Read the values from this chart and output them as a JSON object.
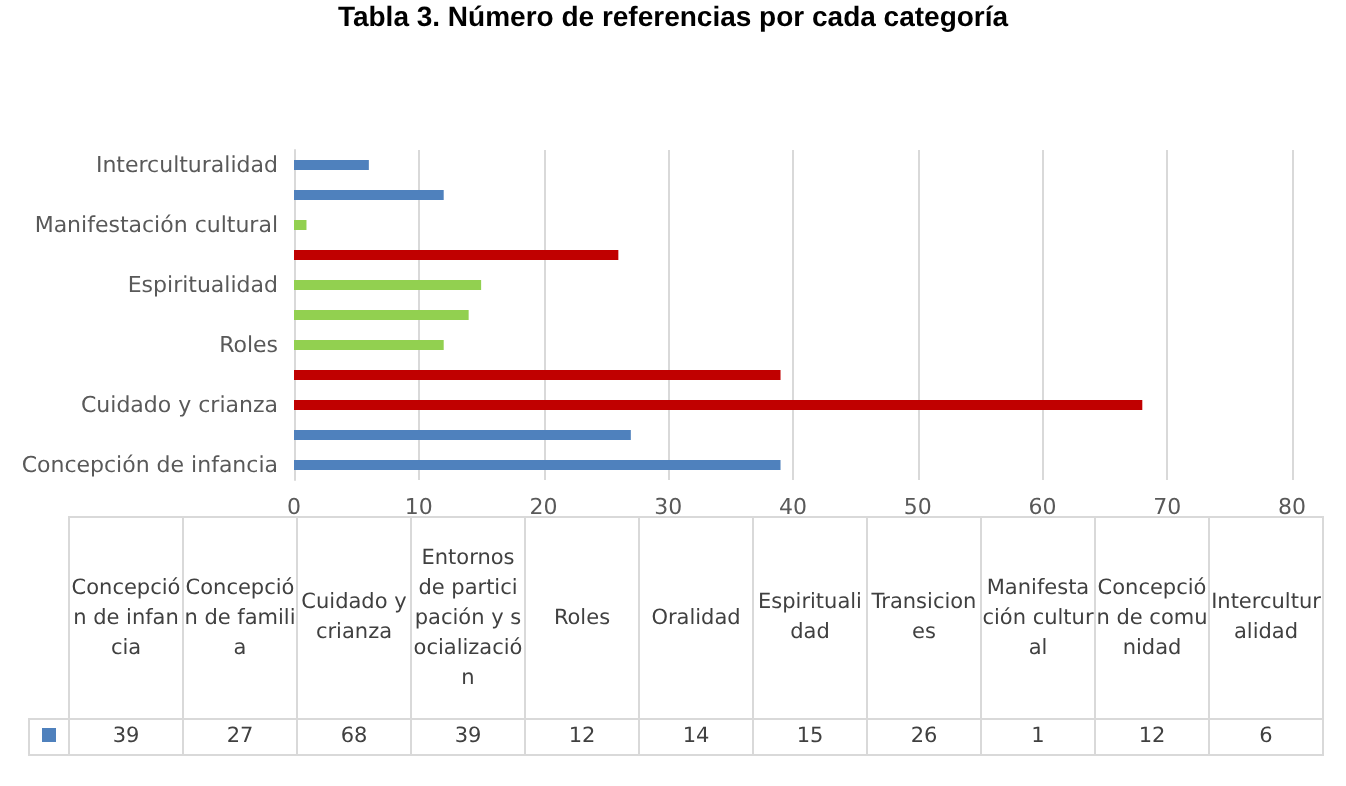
{
  "chart_data": [
    {
      "type": "bar",
      "orientation": "horizontal",
      "title": "Tabla 3. Número de referencias por cada categoría",
      "categories": [
        "Interculturalidad",
        null,
        "Manifestación cultural",
        null,
        "Espiritualidad",
        null,
        "Roles",
        null,
        "Cuidado y crianza",
        null,
        "Concepción de infancia"
      ],
      "values": [
        6,
        12,
        1,
        26,
        15,
        14,
        12,
        39,
        68,
        27,
        39
      ],
      "colors": [
        "#4f81bd",
        "#4f81bd",
        "#92d050",
        "#c00000",
        "#92d050",
        "#92d050",
        "#92d050",
        "#c00000",
        "#c00000",
        "#4f81bd",
        "#4f81bd"
      ],
      "xlim": [
        0,
        80
      ],
      "xticks": [
        0,
        10,
        20,
        30,
        40,
        50,
        60,
        70,
        80
      ],
      "grid": "x"
    },
    {
      "type": "other",
      "color": "#4f81bd",
      "categories": [
        "Concepción de infancia",
        "Concepción de familia",
        "Cuidado y crianza",
        "Entornos de participación y socialización",
        "Roles",
        "Oralidad",
        "Espiritualidad",
        "Transiciones",
        "Manifestación cultural",
        "Concepción de comunidad",
        "Interculturalidad"
      ],
      "values": [
        39,
        27,
        68,
        39,
        12,
        14,
        15,
        26,
        1,
        12,
        6
      ],
      "data_labels": true
    }
  ]
}
